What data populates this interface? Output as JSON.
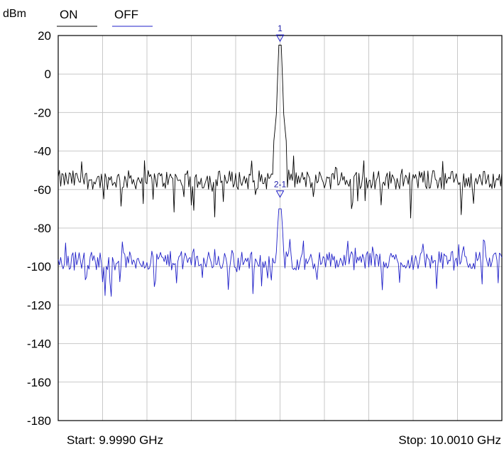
{
  "chart_data": {
    "type": "line",
    "unit_label": "dBm",
    "ylim": [
      -180,
      20
    ],
    "yticks": [
      "20",
      "0",
      "-20",
      "-40",
      "-60",
      "-80",
      "-100",
      "-120",
      "-140",
      "-160",
      "-180"
    ],
    "grid": true,
    "x_divisions": 10,
    "start_label": "Start: 9.9990 GHz",
    "stop_label": "Stop: 10.0010 GHz",
    "xlim": [
      9.999,
      10.001
    ],
    "legend": [
      {
        "name": "ON",
        "color": "#000000"
      },
      {
        "name": "OFF",
        "color": "#1f1fc8"
      }
    ],
    "series": [
      {
        "name": "ON",
        "color": "#000000",
        "noise_floor_dbm": -55,
        "peak_x_ghz": 10.0,
        "peak_dbm": 15
      },
      {
        "name": "OFF",
        "color": "#1f1fc8",
        "noise_floor_dbm": -97,
        "peak_x_ghz": 10.0,
        "peak_dbm": -70
      }
    ],
    "markers": [
      {
        "label": "1",
        "x_ghz": 10.0,
        "y_dbm": 17,
        "color": "#1f1fc8"
      },
      {
        "label": "2-1",
        "x_ghz": 10.0,
        "y_dbm": -64,
        "color": "#1f1fc8"
      }
    ]
  }
}
